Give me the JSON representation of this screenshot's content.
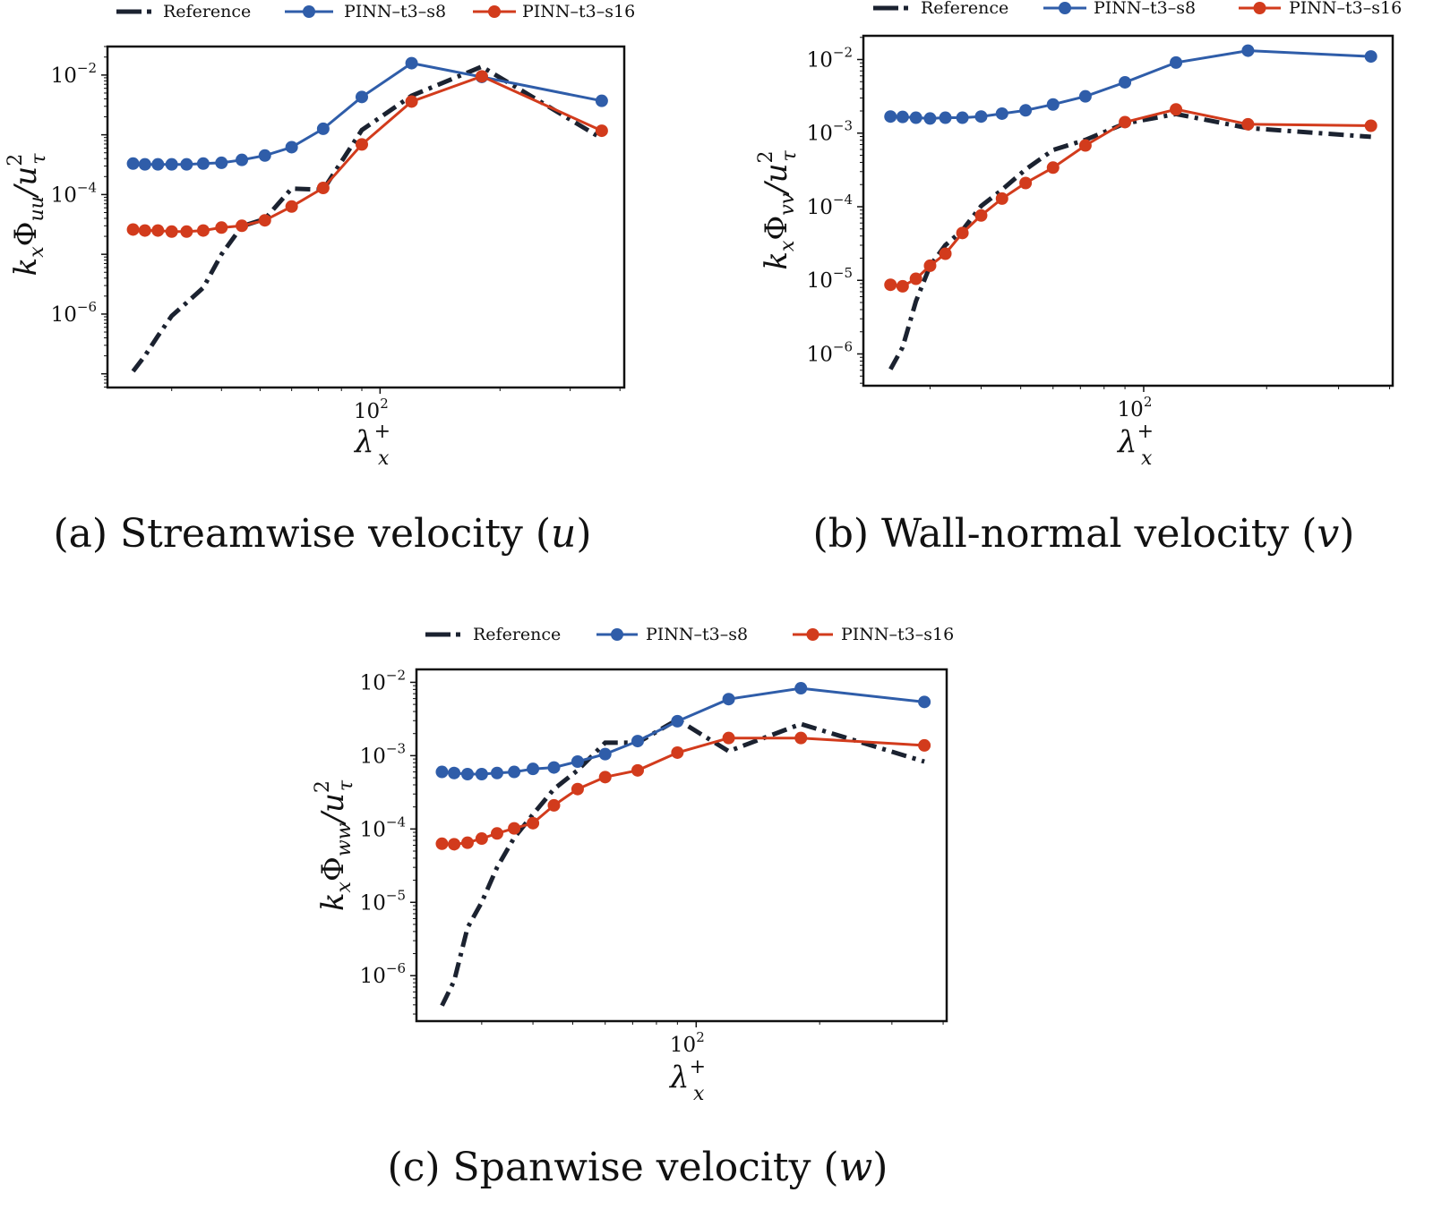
{
  "legend_labels": [
    "Reference",
    "PINN–t3–s8",
    "PINN–t3–s16"
  ],
  "colors": {
    "Reference": "#1b2230",
    "PINN–t3–s8": "#2f5da9",
    "PINN–t3–s16": "#d23b1c"
  },
  "chart_data": [
    {
      "type": "line",
      "caption": {
        "prefix": "(a) Streamwise velocity (",
        "var": "u",
        "suffix": ")"
      },
      "xlabel": {
        "main": "λ",
        "sub": "x",
        "sup": "+"
      },
      "ylabel": {
        "k": "k",
        "k_sub": "x",
        "phi": "Φ",
        "phi_sub": "uu",
        "slash": "/u",
        "u_sub": "τ",
        "u_sup": "2"
      },
      "xscale": "log",
      "yscale": "log",
      "xlim": [
        20.7,
        410
      ],
      "ylim": [
        5.9e-08,
        0.03
      ],
      "xticks": [
        {
          "value": 100,
          "base": "10",
          "exp": "2"
        }
      ],
      "yticks": [
        {
          "value": 0.01,
          "base": "10",
          "exp": "−2"
        },
        {
          "value": 0.0001,
          "base": "10",
          "exp": "−4"
        },
        {
          "value": 1e-06,
          "base": "10",
          "exp": "−6"
        }
      ],
      "legend": "top",
      "x": [
        24,
        25.7,
        27.7,
        30,
        32.7,
        36,
        40,
        45,
        51.4,
        60,
        72,
        90,
        120,
        180,
        360
      ],
      "series": [
        {
          "name": "Reference",
          "style": "dashdot",
          "values": [
            1.1e-07,
            2e-07,
            4.3e-07,
            9.3e-07,
            1.55e-06,
            2.75e-06,
            1e-05,
            2.95e-05,
            3.9e-05,
            0.000126,
            0.00012,
            0.0012,
            0.0045,
            0.0138,
            0.00087
          ]
        },
        {
          "name": "PINN–t3–s8",
          "style": "line-marker",
          "values": [
            0.00033,
            0.00032,
            0.00032,
            0.00032,
            0.00032,
            0.00033,
            0.00034,
            0.00038,
            0.00045,
            0.00062,
            0.00126,
            0.0043,
            0.0158,
            0.0093,
            0.0037
          ]
        },
        {
          "name": "PINN–t3–s16",
          "style": "line-marker",
          "values": [
            2.6e-05,
            2.5e-05,
            2.5e-05,
            2.4e-05,
            2.4e-05,
            2.5e-05,
            2.8e-05,
            3e-05,
            3.7e-05,
            6.3e-05,
            0.000129,
            0.00069,
            0.0036,
            0.0095,
            0.00117
          ]
        }
      ]
    },
    {
      "type": "line",
      "caption": {
        "prefix": "(b) Wall-normal velocity (",
        "var": "v",
        "suffix": ")"
      },
      "xlabel": {
        "main": "λ",
        "sub": "x",
        "sup": "+"
      },
      "ylabel": {
        "k": "k",
        "k_sub": "x",
        "phi": "Φ",
        "phi_sub": "vv",
        "slash": "/u",
        "u_sub": "τ",
        "u_sup": "2"
      },
      "xscale": "log",
      "yscale": "log",
      "xlim": [
        20.6,
        407
      ],
      "ylim": [
        3.7e-07,
        0.021
      ],
      "xticks": [
        {
          "value": 100,
          "base": "10",
          "exp": "2"
        }
      ],
      "yticks": [
        {
          "value": 0.01,
          "base": "10",
          "exp": "−2"
        },
        {
          "value": 0.001,
          "base": "10",
          "exp": "−3"
        },
        {
          "value": 0.0001,
          "base": "10",
          "exp": "−4"
        },
        {
          "value": 1e-05,
          "base": "10",
          "exp": "−5"
        },
        {
          "value": 1e-06,
          "base": "10",
          "exp": "−6"
        }
      ],
      "legend": "top",
      "x": [
        24,
        25.7,
        27.7,
        30,
        32.7,
        36,
        40,
        45,
        51.4,
        60,
        72,
        90,
        120,
        180,
        360
      ],
      "series": [
        {
          "name": "Reference",
          "style": "dashdot",
          "values": [
            6.2e-07,
            1.23e-06,
            5.2e-06,
            1.58e-05,
            3e-05,
            4.8e-05,
            0.000102,
            0.00017,
            0.00032,
            0.00059,
            0.00081,
            0.00135,
            0.00182,
            0.00117,
            0.00089
          ]
        },
        {
          "name": "PINN–t3–s8",
          "style": "line-marker",
          "values": [
            0.00168,
            0.00166,
            0.00162,
            0.00158,
            0.00162,
            0.00162,
            0.00168,
            0.00184,
            0.00204,
            0.00245,
            0.00316,
            0.0049,
            0.0091,
            0.0132,
            0.011
          ]
        },
        {
          "name": "PINN–t3–s16",
          "style": "line-marker",
          "values": [
            8.7e-06,
            8.3e-06,
            1.05e-05,
            1.58e-05,
            2.3e-05,
            4.4e-05,
            7.6e-05,
            0.000129,
            0.00021,
            0.00034,
            0.00068,
            0.00141,
            0.0021,
            0.00132,
            0.00126
          ]
        }
      ]
    },
    {
      "type": "line",
      "caption": {
        "prefix": "(c) Spanwise velocity (",
        "var": "w",
        "suffix": ")"
      },
      "xlabel": {
        "main": "λ",
        "sub": "x",
        "sup": "+"
      },
      "ylabel": {
        "k": "k",
        "k_sub": "x",
        "phi": "Φ",
        "phi_sub": "ww",
        "slash": "/u",
        "u_sub": "τ",
        "u_sup": "2"
      },
      "xscale": "log",
      "yscale": "log",
      "xlim": [
        20.8,
        408
      ],
      "ylim": [
        2.4e-07,
        0.015
      ],
      "xticks": [
        {
          "value": 100,
          "base": "10",
          "exp": "2"
        }
      ],
      "yticks": [
        {
          "value": 0.01,
          "base": "10",
          "exp": "−2"
        },
        {
          "value": 0.001,
          "base": "10",
          "exp": "−3"
        },
        {
          "value": 0.0001,
          "base": "10",
          "exp": "−4"
        },
        {
          "value": 1e-05,
          "base": "10",
          "exp": "−5"
        },
        {
          "value": 1e-06,
          "base": "10",
          "exp": "−6"
        }
      ],
      "legend": "top",
      "x": [
        24,
        25.7,
        27.7,
        30,
        32.7,
        36,
        40,
        45,
        51.4,
        60,
        72,
        90,
        120,
        180,
        360
      ],
      "series": [
        {
          "name": "Reference",
          "style": "dashdot",
          "values": [
            3.9e-07,
            8.5e-07,
            4.5e-06,
            1e-05,
            3e-05,
            7.6e-05,
            0.000158,
            0.00035,
            0.00063,
            0.0015,
            0.0015,
            0.0031,
            0.00115,
            0.0027,
            0.00083
          ]
        },
        {
          "name": "PINN–t3–s8",
          "style": "line-marker",
          "values": [
            0.0006,
            0.00058,
            0.00056,
            0.00056,
            0.00058,
            0.0006,
            0.00066,
            0.00069,
            0.00083,
            0.00105,
            0.00158,
            0.00295,
            0.0059,
            0.0083,
            0.0054
          ]
        },
        {
          "name": "PINN–t3–s16",
          "style": "line-marker",
          "values": [
            6.3e-05,
            6.2e-05,
            6.5e-05,
            7.4e-05,
            8.7e-05,
            0.000102,
            0.00012,
            0.00021,
            0.00035,
            0.00051,
            0.00063,
            0.0011,
            0.00174,
            0.00174,
            0.00138
          ]
        }
      ]
    }
  ]
}
